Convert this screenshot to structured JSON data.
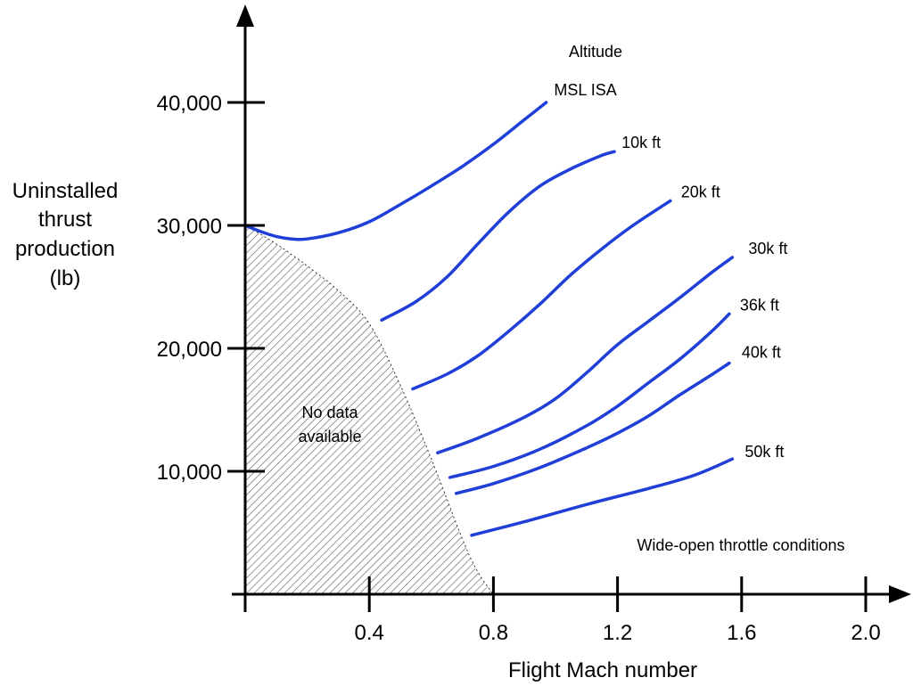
{
  "chart_data": {
    "type": "line",
    "xlabel": "Flight Mach number",
    "ylabel_lines": [
      "Uninstalled",
      "thrust",
      "production",
      "(lb)"
    ],
    "xlim": [
      0,
      2.12
    ],
    "ylim": [
      0,
      48000
    ],
    "x_ticks": [
      {
        "value": 0.4,
        "label": "0.4"
      },
      {
        "value": 0.8,
        "label": "0.8"
      },
      {
        "value": 1.2,
        "label": "1.2"
      },
      {
        "value": 1.6,
        "label": "1.6"
      },
      {
        "value": 2.0,
        "label": "2.0"
      }
    ],
    "y_ticks": [
      {
        "value": 10000,
        "label": "10,000"
      },
      {
        "value": 20000,
        "label": "20,000"
      },
      {
        "value": 30000,
        "label": "30,000"
      },
      {
        "value": 40000,
        "label": "40,000"
      }
    ],
    "legend_title": "Altitude",
    "series_color": "#1f3fd8",
    "series": [
      {
        "name": "MSL ISA",
        "x": [
          0,
          0.05,
          0.1,
          0.15,
          0.2,
          0.3,
          0.4,
          0.5,
          0.6,
          0.7,
          0.8,
          0.9,
          0.97
        ],
        "y": [
          30000,
          29500,
          29100,
          28900,
          28900,
          29400,
          30300,
          31700,
          33200,
          34800,
          36600,
          38600,
          40000
        ]
      },
      {
        "name": "10k ft",
        "x": [
          0.44,
          0.55,
          0.65,
          0.75,
          0.85,
          0.95,
          1.05,
          1.15,
          1.19
        ],
        "y": [
          22300,
          23800,
          25800,
          28500,
          31100,
          33200,
          34600,
          35700,
          36000
        ]
      },
      {
        "name": "20k ft",
        "x": [
          0.54,
          0.65,
          0.75,
          0.85,
          0.95,
          1.05,
          1.15,
          1.25,
          1.37
        ],
        "y": [
          16700,
          17900,
          19400,
          21400,
          23600,
          26000,
          28100,
          30000,
          32000
        ]
      },
      {
        "name": "30k ft",
        "x": [
          0.62,
          0.75,
          0.9,
          1.0,
          1.1,
          1.2,
          1.3,
          1.4,
          1.5,
          1.57
        ],
        "y": [
          11500,
          12700,
          14400,
          15900,
          18000,
          20300,
          22200,
          24100,
          26100,
          27400
        ]
      },
      {
        "name": "36k ft",
        "x": [
          0.66,
          0.8,
          0.95,
          1.1,
          1.2,
          1.3,
          1.4,
          1.5,
          1.56
        ],
        "y": [
          9500,
          10400,
          11800,
          13700,
          15300,
          17200,
          19100,
          21300,
          22800
        ]
      },
      {
        "name": "40k ft",
        "x": [
          0.68,
          0.8,
          0.95,
          1.1,
          1.2,
          1.3,
          1.4,
          1.5,
          1.56
        ],
        "y": [
          8200,
          9000,
          10300,
          11900,
          13100,
          14500,
          16200,
          17800,
          18800
        ]
      },
      {
        "name": "50k ft",
        "x": [
          0.73,
          0.9,
          1.1,
          1.3,
          1.45,
          1.57
        ],
        "y": [
          4800,
          5900,
          7300,
          8600,
          9700,
          11000
        ]
      }
    ],
    "no_data_region": {
      "label_lines": [
        "No data",
        "available"
      ],
      "boundary_x": [
        0,
        0.1,
        0.2,
        0.3,
        0.4,
        0.5,
        0.6,
        0.7,
        0.75,
        0.8
      ],
      "boundary_y": [
        30000,
        28500,
        26700,
        24700,
        22000,
        17000,
        11000,
        4500,
        1800,
        0
      ]
    },
    "annotation": "Wide-open throttle conditions"
  }
}
